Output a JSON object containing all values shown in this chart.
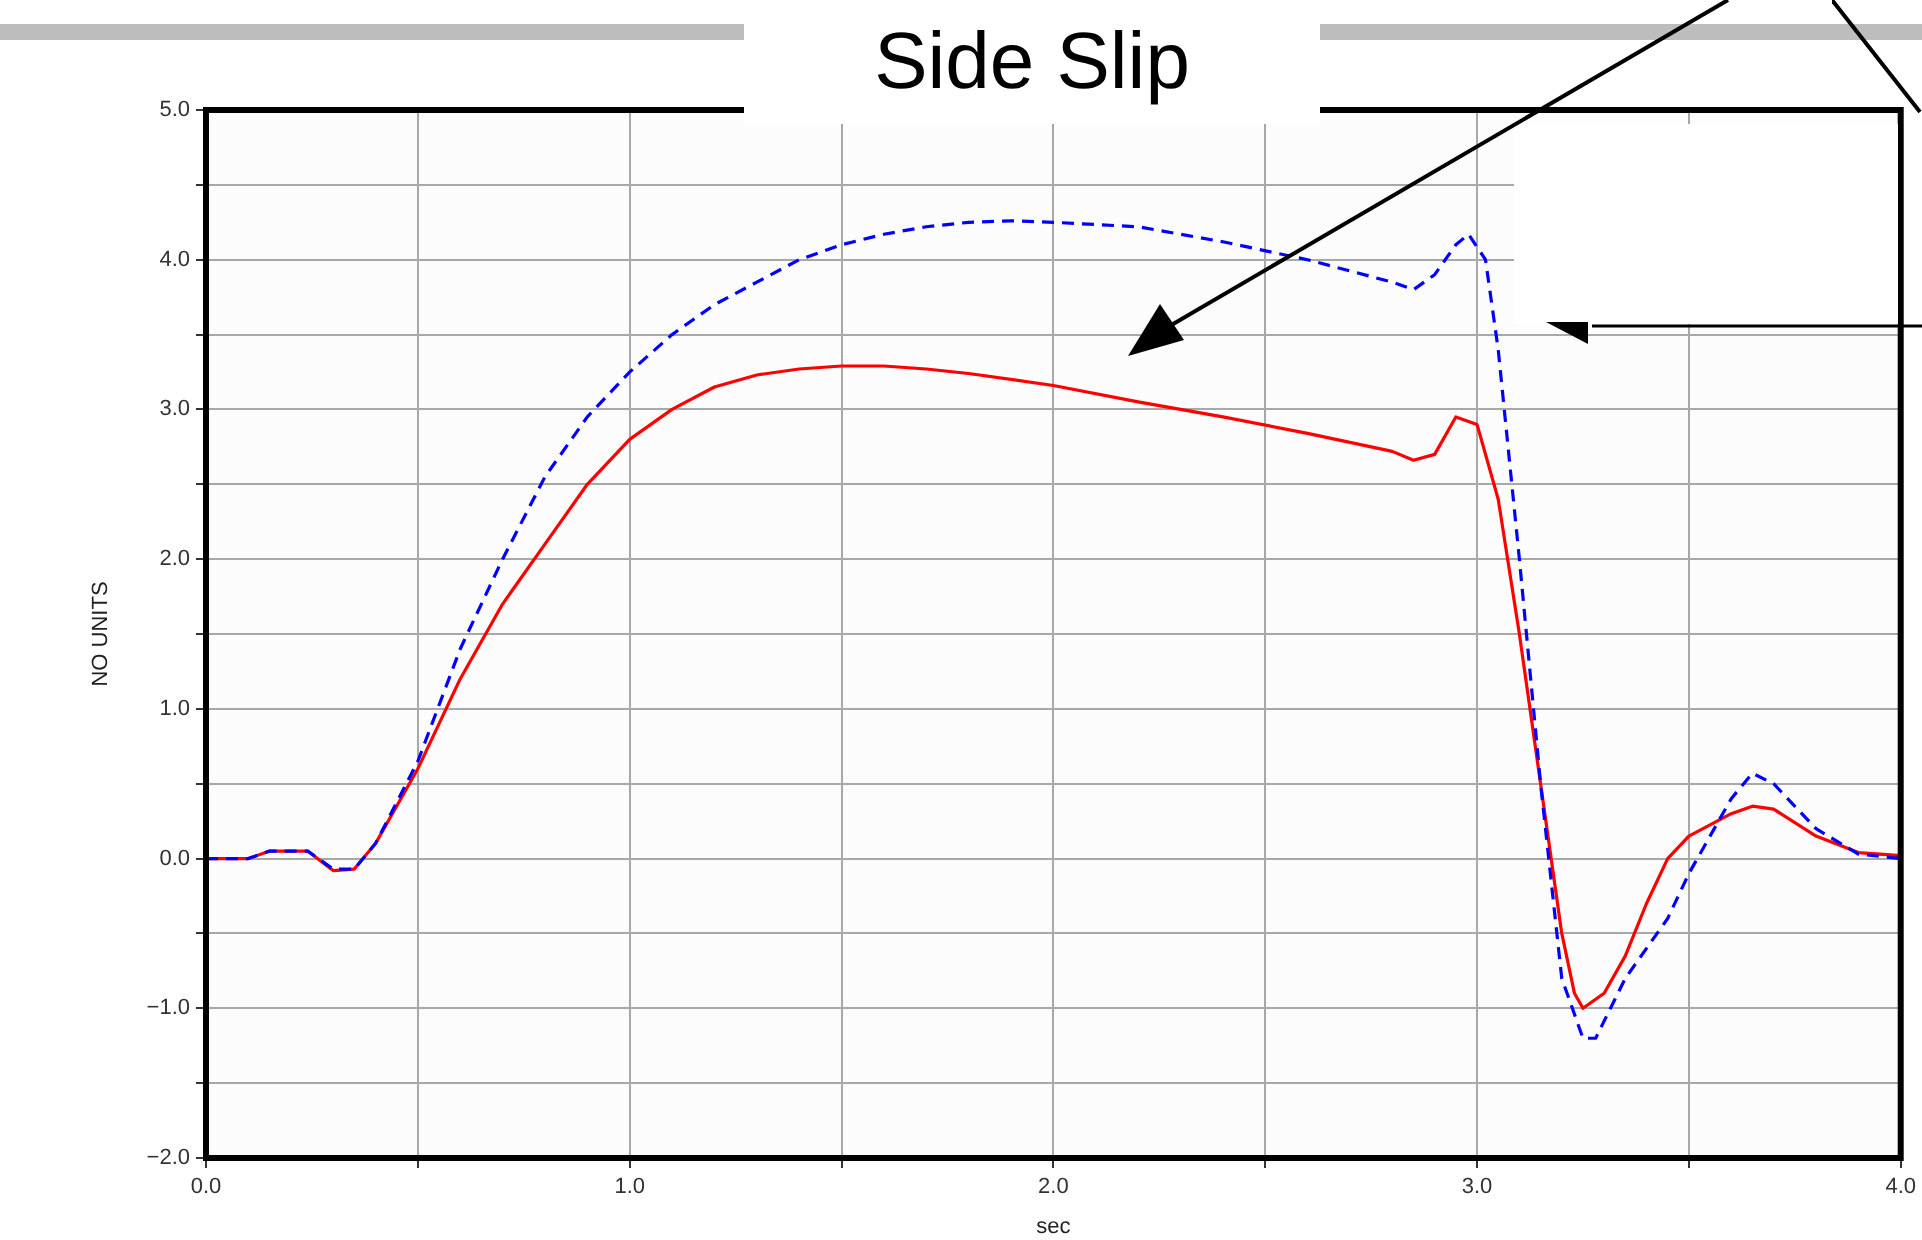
{
  "chart_data": {
    "type": "line",
    "title": "Side Slip",
    "xlabel": "sec",
    "ylabel": "NO UNITS",
    "xlim": [
      0,
      4
    ],
    "xticks": [
      {
        "value": 0,
        "label": "0.0"
      },
      {
        "value": 0.5,
        "label": null
      },
      {
        "value": 1,
        "label": "1.0"
      },
      {
        "value": 1.5,
        "label": null
      },
      {
        "value": 2,
        "label": "2.0"
      },
      {
        "value": 2.5,
        "label": null
      },
      {
        "value": 3,
        "label": "3.0"
      },
      {
        "value": 3.5,
        "label": null
      },
      {
        "value": 4,
        "label": "4.0"
      }
    ],
    "ylim": [
      -2,
      5
    ],
    "yticks": [
      {
        "value": -2,
        "label": "−2.0"
      },
      {
        "value": -1.5,
        "label": null
      },
      {
        "value": -1,
        "label": "−1.0"
      },
      {
        "value": -0.5,
        "label": null
      },
      {
        "value": 0,
        "label": "0.0"
      },
      {
        "value": 0.5,
        "label": null
      },
      {
        "value": 1,
        "label": "1.0"
      },
      {
        "value": 1.5,
        "label": null
      },
      {
        "value": 2,
        "label": "2.0"
      },
      {
        "value": 2.5,
        "label": null
      },
      {
        "value": 3,
        "label": "3.0"
      },
      {
        "value": 3.5,
        "label": null
      },
      {
        "value": 4,
        "label": "4.0"
      },
      {
        "value": 4.5,
        "label": null
      },
      {
        "value": 5,
        "label": "5.0"
      }
    ],
    "grid": true,
    "legend": false,
    "marker": "none",
    "series": [
      {
        "color": "#0000ff",
        "line_style": "dashed",
        "x": [
          0,
          0.1,
          0.15,
          0.24,
          0.3,
          0.35,
          0.4,
          0.5,
          0.6,
          0.7,
          0.8,
          0.9,
          1.0,
          1.1,
          1.2,
          1.3,
          1.4,
          1.5,
          1.6,
          1.7,
          1.8,
          1.9,
          2.0,
          2.2,
          2.4,
          2.6,
          2.8,
          2.85,
          2.9,
          2.95,
          2.98,
          3.02,
          3.05,
          3.1,
          3.15,
          3.2,
          3.25,
          3.28,
          3.35,
          3.45,
          3.5,
          3.6,
          3.65,
          3.7,
          3.8,
          3.9,
          4.0
        ],
        "values": [
          0,
          0,
          0.05,
          0.05,
          -0.07,
          -0.07,
          0.1,
          0.65,
          1.4,
          2.0,
          2.55,
          2.95,
          3.25,
          3.5,
          3.7,
          3.85,
          4.0,
          4.1,
          4.17,
          4.22,
          4.25,
          4.26,
          4.25,
          4.22,
          4.12,
          4.0,
          3.85,
          3.8,
          3.9,
          4.1,
          4.17,
          4.0,
          3.4,
          2.0,
          0.5,
          -0.8,
          -1.2,
          -1.2,
          -0.8,
          -0.4,
          -0.1,
          0.4,
          0.57,
          0.5,
          0.2,
          0.03,
          0
        ]
      },
      {
        "color": "#ff0000",
        "line_style": "solid",
        "x": [
          0,
          0.1,
          0.15,
          0.24,
          0.3,
          0.35,
          0.4,
          0.5,
          0.6,
          0.7,
          0.8,
          0.9,
          1.0,
          1.1,
          1.2,
          1.3,
          1.4,
          1.5,
          1.6,
          1.7,
          1.8,
          2.0,
          2.2,
          2.4,
          2.6,
          2.8,
          2.85,
          2.9,
          2.95,
          3.0,
          3.05,
          3.1,
          3.15,
          3.2,
          3.23,
          3.25,
          3.3,
          3.35,
          3.4,
          3.45,
          3.5,
          3.6,
          3.65,
          3.7,
          3.8,
          3.9,
          4.0
        ],
        "values": [
          0,
          0,
          0.05,
          0.05,
          -0.08,
          -0.07,
          0.1,
          0.6,
          1.2,
          1.7,
          2.1,
          2.5,
          2.8,
          3.0,
          3.15,
          3.23,
          3.27,
          3.29,
          3.29,
          3.27,
          3.24,
          3.16,
          3.05,
          2.95,
          2.84,
          2.72,
          2.66,
          2.7,
          2.95,
          2.9,
          2.4,
          1.5,
          0.5,
          -0.5,
          -0.9,
          -1.0,
          -0.9,
          -0.65,
          -0.3,
          0.0,
          0.15,
          0.3,
          0.35,
          0.33,
          0.15,
          0.04,
          0.02
        ]
      }
    ]
  }
}
